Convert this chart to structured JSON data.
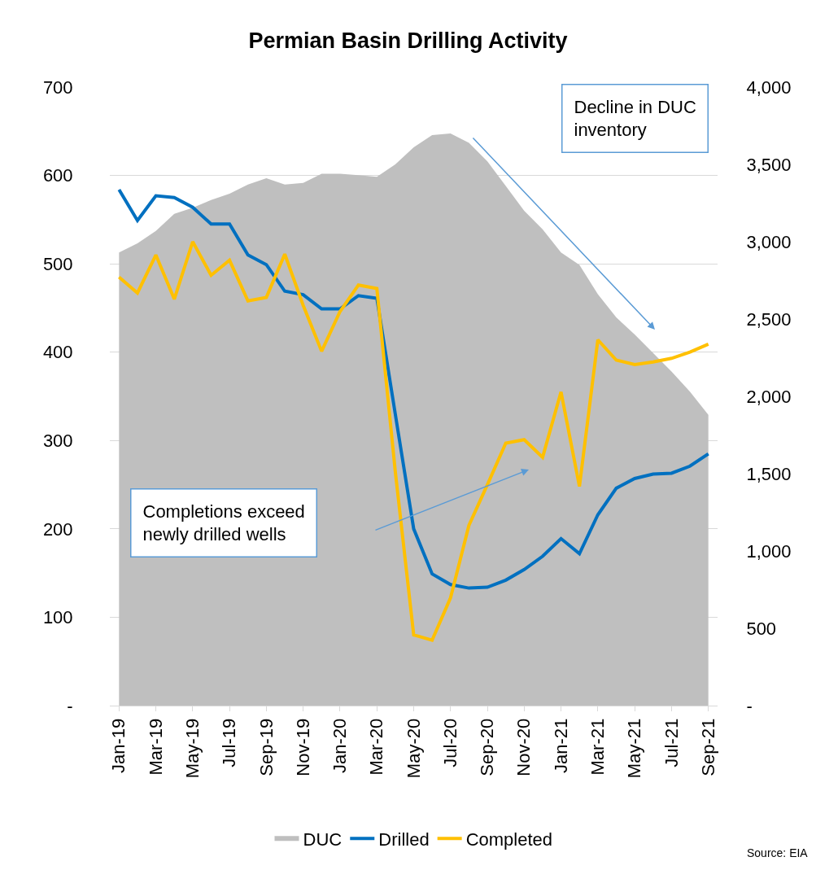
{
  "chart_data": {
    "type": "line",
    "title": "Permian Basin Drilling Activity",
    "categories": [
      "Jan-19",
      null,
      "Mar-19",
      null,
      "May-19",
      null,
      "Jul-19",
      null,
      "Sep-19",
      null,
      "Nov-19",
      null,
      "Jan-20",
      null,
      "Mar-20",
      null,
      "May-20",
      null,
      "Jul-20",
      null,
      "Sep-20",
      null,
      "Nov-20",
      null,
      "Jan-21",
      null,
      "Mar-21",
      null,
      "May-21",
      null,
      "Jul-21",
      null,
      "Sep-21"
    ],
    "series": [
      {
        "name": "DUC",
        "type": "area",
        "axis": "y2",
        "color": "#bfbfbf",
        "values": [
          2930,
          2990,
          3070,
          3180,
          3220,
          3270,
          3310,
          3370,
          3410,
          3370,
          3380,
          3440,
          3440,
          3430,
          3420,
          3500,
          3610,
          3690,
          3700,
          3640,
          3520,
          3360,
          3200,
          3080,
          2930,
          2850,
          2660,
          2510,
          2400,
          2280,
          2160,
          2030,
          1880
        ]
      },
      {
        "name": "Drilled",
        "color": "#0070c0",
        "values": [
          584,
          549,
          577,
          575,
          564,
          545,
          545,
          510,
          499,
          469,
          465,
          449,
          449,
          464,
          461,
          330,
          200,
          149,
          137,
          133,
          134,
          142,
          154,
          169,
          189,
          172,
          216,
          246,
          257,
          262,
          263,
          271,
          285
        ]
      },
      {
        "name": "Completed",
        "color": "#ffc000",
        "values": [
          485,
          467,
          510,
          460,
          525,
          487,
          504,
          458,
          462,
          511,
          453,
          401,
          446,
          476,
          472,
          265,
          80,
          74,
          122,
          204,
          250,
          297,
          301,
          281,
          355,
          248,
          414,
          391,
          386,
          389,
          393,
          400,
          409
        ]
      }
    ],
    "ylim": [
      0,
      700
    ],
    "yticks": [
      {
        "value": 0,
        "label": "-"
      },
      100,
      200,
      300,
      400,
      500,
      600,
      700
    ],
    "y2lim": [
      0,
      4000
    ],
    "y2ticks": [
      {
        "value": 0,
        "label": "-"
      },
      {
        "value": 500,
        "label": "500"
      },
      {
        "value": 1000,
        "label": "1,000"
      },
      {
        "value": 1500,
        "label": "1,500"
      },
      {
        "value": 2000,
        "label": "2,000"
      },
      {
        "value": 2500,
        "label": "2,500"
      },
      {
        "value": 3000,
        "label": "3,000"
      },
      {
        "value": 3500,
        "label": "3,500"
      },
      {
        "value": 4000,
        "label": "4,000"
      }
    ],
    "grid": "y",
    "legend": "bottom",
    "marker": "none",
    "line_style": "solid",
    "annotations": [
      "Decline in DUC inventory",
      "Completions exceed newly drilled wells",
      "Source: EIA"
    ]
  }
}
